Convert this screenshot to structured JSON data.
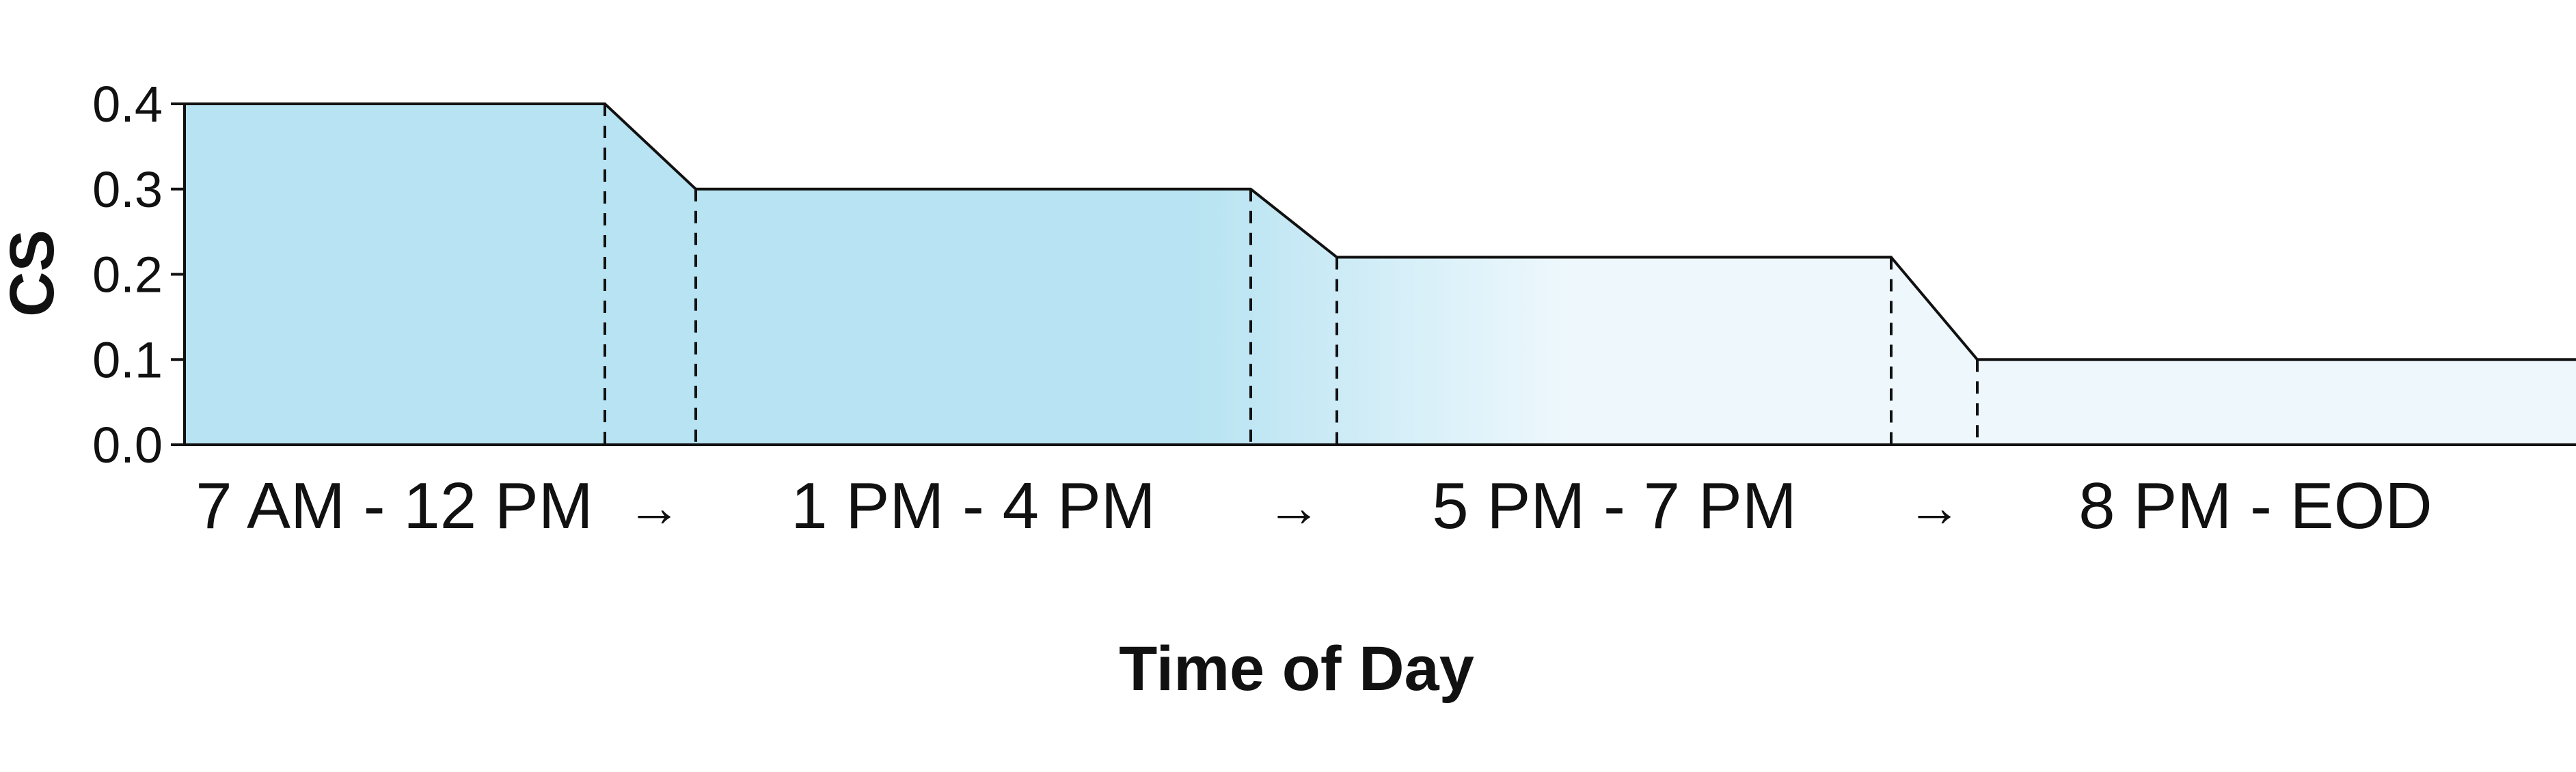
{
  "chart_data": {
    "type": "area",
    "title": "",
    "xlabel": "Time of Day",
    "ylabel": "CS",
    "ylim": [
      0.0,
      0.4
    ],
    "yticks": [
      "0.0",
      "0.1",
      "0.2",
      "0.3",
      "0.4"
    ],
    "grid": false,
    "legend": "none",
    "categories": [
      "7 AM - 12 PM",
      "1 PM - 4 PM",
      "5 PM - 7 PM",
      "8 PM - EOD"
    ],
    "values": [
      0.4,
      0.3,
      0.22,
      0.1
    ],
    "transition_marker": "→",
    "colors": {
      "fill_strong": "#b7e3f2",
      "fill_light": "#eef8fc",
      "line": "#111111"
    }
  }
}
